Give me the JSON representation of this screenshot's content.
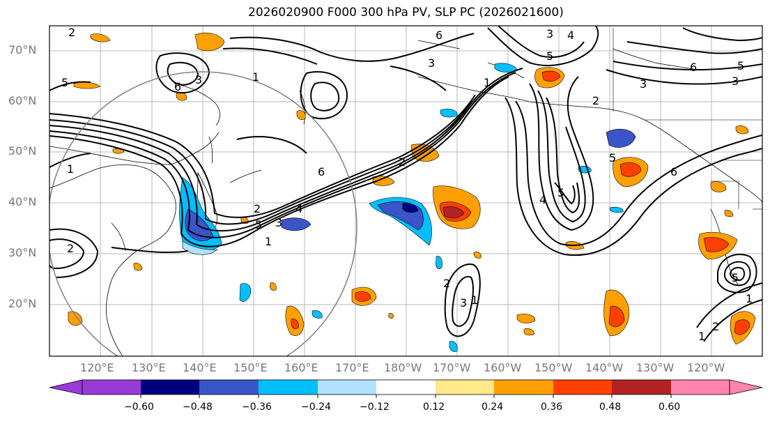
{
  "title": "2026020900 F000 300 hPa PV, SLP PC (2026021600)",
  "lat_labels": [
    "70°N",
    "60°N",
    "50°N",
    "40°N",
    "30°N",
    "20°N"
  ],
  "lon_labels": [
    "120°E",
    "130°E",
    "140°E",
    "150°E",
    "160°E",
    "170°E",
    "180°W",
    "170°W",
    "160°W",
    "150°W",
    "140°W",
    "130°W",
    "120°W"
  ],
  "colorbar": {
    "ticks": [
      "−0.60",
      "−0.48",
      "−0.36",
      "−0.24",
      "−0.12",
      "0.12",
      "0.24",
      "0.36",
      "0.48",
      "0.60"
    ],
    "colors": [
      "#9a3ad6",
      "#000080",
      "#3a55c8",
      "#00bfff",
      "#b0e2ff",
      "#ffffff",
      "#ffe98a",
      "#ffa000",
      "#ff4000",
      "#b22222",
      "#ff85ad"
    ]
  },
  "contour_labels": [
    "2",
    "3",
    "1",
    "5",
    "6",
    "4",
    "3",
    "5",
    "6",
    "1",
    "2",
    "3",
    "4",
    "6",
    "1",
    "2",
    "3",
    "5",
    "2",
    "1",
    "3",
    "5",
    "6",
    "3",
    "2",
    "5",
    "6",
    "1",
    "2",
    "3",
    "4",
    "5",
    "1",
    "2",
    "5",
    "1"
  ]
}
